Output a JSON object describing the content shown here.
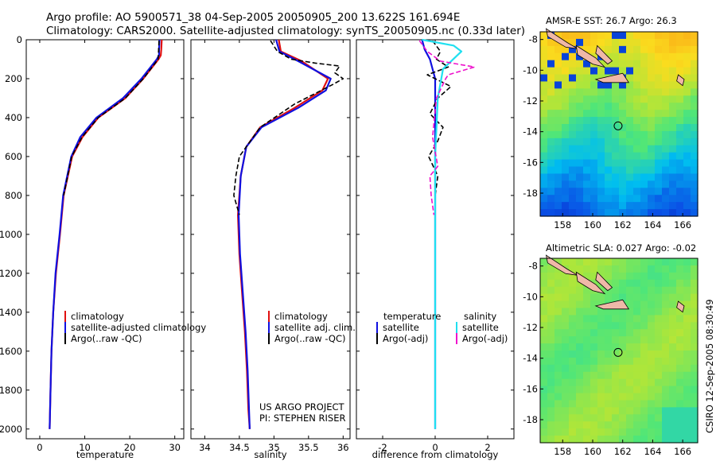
{
  "figure": {
    "title_line1": "Argo profile: AO 5900571_38 04-Sep-2005 20050905_200 13.622S 161.694E",
    "title_line2": "Climatology: CARS2000. Satellite-adjusted climatology: synTS_20050905.nc (0.33d later)",
    "side_label": "CSIRO 12-Sep-2005 08:30:49",
    "credit_line1": "US ARGO PROJECT",
    "credit_line2": "PI: STEPHEN RISER"
  },
  "colors": {
    "climatology": "#e01010",
    "satellite": "#1010e0",
    "argo": "#000000",
    "salinity_satellite": "#20e0f0",
    "salinity_argo": "#ee11cc",
    "land": "#f0b8a8"
  },
  "chart_data": [
    {
      "type": "line",
      "name": "temperature",
      "xlabel": "temperature",
      "xlim": [
        -3,
        32
      ],
      "ylim": [
        2050,
        0
      ],
      "xticks": [
        0,
        10,
        20,
        30
      ],
      "yticks": [
        0,
        200,
        400,
        600,
        800,
        1000,
        1200,
        1400,
        1600,
        1800,
        2000
      ],
      "legend": [
        "climatology",
        "satellite-adjusted climatology",
        "Argo(..raw -QC)"
      ],
      "series": [
        {
          "name": "climatology",
          "color": "#e01010",
          "x": [
            27.1,
            27.0,
            26.9,
            26.4,
            23.0,
            19.0,
            13.0,
            9.5,
            7.2,
            5.3,
            4.5,
            3.6,
            3.0,
            2.6,
            2.4,
            2.2
          ],
          "y": [
            0,
            50,
            80,
            100,
            200,
            300,
            400,
            500,
            600,
            800,
            1000,
            1200,
            1400,
            1600,
            1800,
            2000
          ]
        },
        {
          "name": "satellite-adjusted climatology",
          "color": "#1010e0",
          "x": [
            26.6,
            26.5,
            26.5,
            26.0,
            22.6,
            18.5,
            12.6,
            9.0,
            7.0,
            5.2,
            4.4,
            3.5,
            3.0,
            2.6,
            2.4,
            2.2
          ],
          "y": [
            0,
            50,
            80,
            100,
            200,
            300,
            400,
            500,
            600,
            800,
            1000,
            1200,
            1400,
            1600,
            1800,
            2000
          ]
        },
        {
          "name": "Argo",
          "color": "#000000",
          "x": [
            26.5,
            26.4,
            26.3,
            23.0,
            19.0,
            13.0,
            9.4,
            7.1,
            5.3
          ],
          "y": [
            5,
            60,
            100,
            200,
            300,
            400,
            500,
            600,
            800
          ]
        }
      ]
    },
    {
      "type": "line",
      "name": "salinity",
      "xlabel": "salinity",
      "xlim": [
        33.8,
        36.1
      ],
      "ylim": [
        2050,
        0
      ],
      "xticks": [
        34,
        34.5,
        35,
        35.5,
        36
      ],
      "yticks": [
        0,
        200,
        400,
        600,
        800,
        1000,
        1200,
        1400,
        1600,
        1800,
        2000
      ],
      "legend": [
        "climatology",
        "satellite adj. clim.",
        "Argo(..raw -QC)"
      ],
      "series": [
        {
          "name": "climatology",
          "color": "#e01010",
          "x": [
            35.07,
            35.1,
            35.4,
            35.78,
            35.7,
            35.3,
            34.8,
            34.6,
            34.52,
            34.48,
            34.5,
            34.54,
            34.58,
            34.61,
            34.63,
            34.65
          ],
          "y": [
            0,
            60,
            110,
            200,
            260,
            350,
            450,
            550,
            700,
            900,
            1100,
            1300,
            1500,
            1700,
            1900,
            2000
          ]
        },
        {
          "name": "satellite adj. clim.",
          "color": "#1010e0",
          "x": [
            35.03,
            35.08,
            35.35,
            35.82,
            35.75,
            35.35,
            34.82,
            34.6,
            34.52,
            34.49,
            34.51,
            34.55,
            34.59,
            34.62,
            34.64,
            34.65
          ],
          "y": [
            0,
            60,
            110,
            200,
            260,
            350,
            450,
            550,
            700,
            900,
            1100,
            1300,
            1500,
            1700,
            1900,
            2000
          ]
        },
        {
          "name": "Argo",
          "color": "#000000",
          "x": [
            34.95,
            35.05,
            35.25,
            35.6,
            35.95,
            35.88,
            36.0,
            35.85,
            35.3,
            34.8,
            34.5,
            34.45,
            34.42,
            34.5
          ],
          "y": [
            5,
            60,
            100,
            120,
            135,
            170,
            200,
            230,
            330,
            450,
            600,
            700,
            800,
            900
          ]
        }
      ]
    },
    {
      "type": "line",
      "name": "difference",
      "xlabel": "difference from climatology",
      "xlim": [
        -3,
        3
      ],
      "ylim": [
        2050,
        0
      ],
      "xticks": [
        -2,
        0,
        2
      ],
      "yticks": [
        0,
        200,
        400,
        600,
        800,
        1000,
        1200,
        1400,
        1600,
        1800,
        2000
      ],
      "legend_headers": [
        "temperature",
        "salinity"
      ],
      "legend": [
        "satellite",
        "Argo(-adj)",
        "satellite",
        "Argo(-adj)"
      ],
      "series": [
        {
          "name": "temperature satellite",
          "color": "#1010e0",
          "x": [
            -0.5,
            -0.4,
            -0.2,
            0,
            0,
            0,
            0
          ],
          "y": [
            0,
            50,
            100,
            200,
            500,
            1000,
            2000
          ]
        },
        {
          "name": "temperature Argo(-adj)",
          "color": "#000000",
          "x": [
            -0.1,
            0.2,
            0.05,
            0.5,
            -0.3,
            0.6,
            0.1,
            -0.2,
            0.3,
            0.1,
            -0.25,
            0.1,
            0.0
          ],
          "y": [
            5,
            60,
            100,
            140,
            180,
            240,
            300,
            380,
            450,
            520,
            600,
            700,
            800
          ]
        },
        {
          "name": "salinity satellite",
          "color": "#20e0f0",
          "x": [
            -0.5,
            0.7,
            1.0,
            0.3,
            0.1,
            0,
            0,
            0
          ],
          "y": [
            0,
            30,
            60,
            150,
            300,
            600,
            1000,
            2000
          ]
        },
        {
          "name": "salinity Argo(-adj)",
          "color": "#ee11cc",
          "x": [
            -0.6,
            -0.3,
            0.2,
            1.5,
            0.5,
            0.4,
            0.05,
            -0.1,
            0.1,
            -0.2,
            -0.15,
            -0.05
          ],
          "y": [
            5,
            60,
            110,
            140,
            180,
            200,
            300,
            500,
            650,
            700,
            800,
            900
          ]
        }
      ]
    },
    {
      "type": "heatmap",
      "name": "sst_map",
      "title": "AMSR-E SST: 26.7 Argo: 26.3",
      "xlim": [
        156.5,
        167
      ],
      "ylim": [
        -19.5,
        -7.5
      ],
      "xticks": [
        158,
        160,
        162,
        164,
        166
      ],
      "yticks": [
        -8,
        -10,
        -12,
        -14,
        -16,
        -18
      ],
      "argo_position": {
        "lon": 161.694,
        "lat": -13.622
      }
    },
    {
      "type": "heatmap",
      "name": "sla_map",
      "title": "Altimetric SLA: 0.027 Argo: -0.02",
      "xlim": [
        156.5,
        167
      ],
      "ylim": [
        -19.5,
        -7.5
      ],
      "xticks": [
        158,
        160,
        162,
        164,
        166
      ],
      "yticks": [
        -8,
        -10,
        -12,
        -14,
        -16,
        -18
      ],
      "argo_position": {
        "lon": 161.694,
        "lat": -13.622
      }
    }
  ]
}
